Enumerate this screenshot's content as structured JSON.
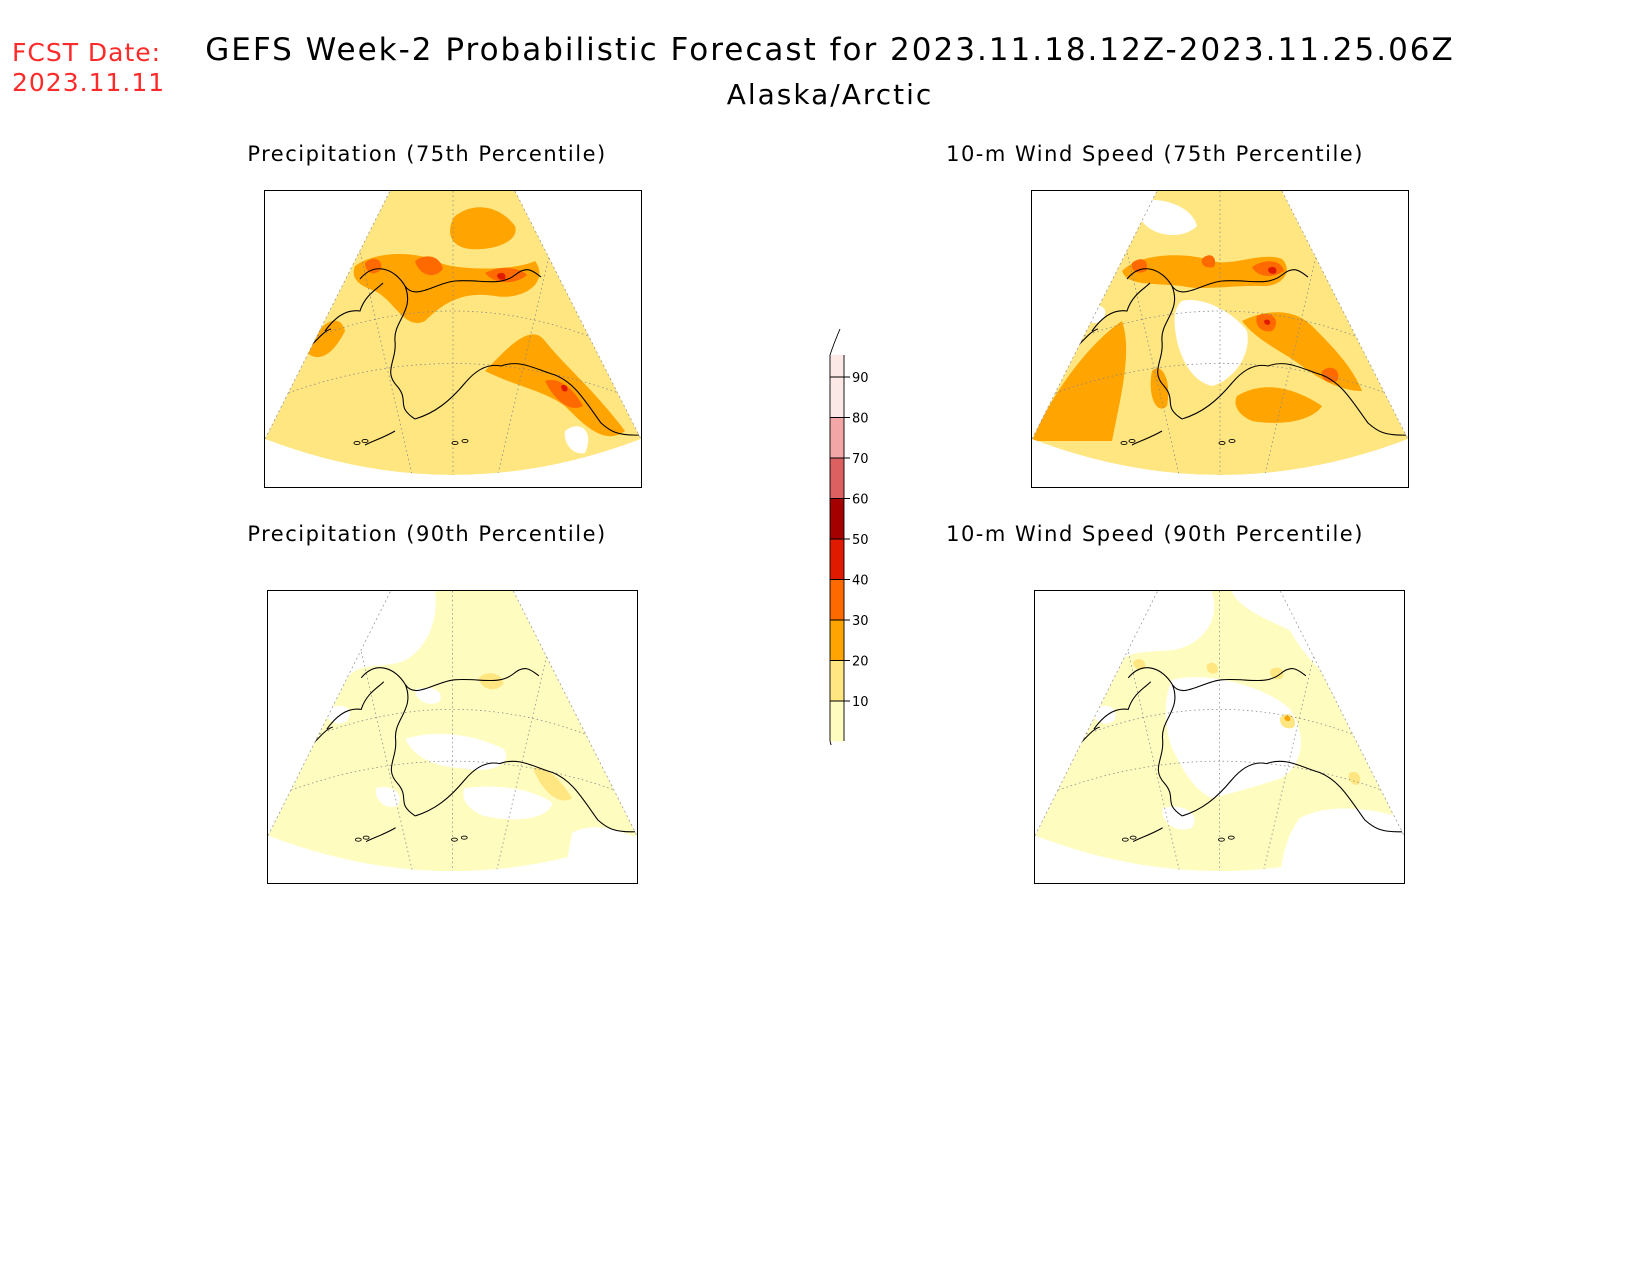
{
  "header": {
    "fcst_label": "FCST Date:",
    "fcst_date": "2023.11.11",
    "title": "GEFS Week-2 Probabilistic Forecast for 2023.11.18.12Z-2023.11.25.06Z",
    "region": "Alaska/Arctic"
  },
  "panels": [
    {
      "id": "precip75",
      "title": "Precipitation (75th Percentile)",
      "base_level": 20
    },
    {
      "id": "wind75",
      "title": "10-m Wind Speed (75th Percentile)",
      "base_level": 20
    },
    {
      "id": "precip90",
      "title": "Precipitation (90th Percentile)",
      "base_level": 10
    },
    {
      "id": "wind90",
      "title": "10-m Wind Speed (90th Percentile)",
      "base_level": 10
    }
  ],
  "legend": {
    "levels": [
      10,
      20,
      30,
      40,
      50,
      60,
      70,
      80,
      90
    ],
    "colors": [
      "#fffcc0",
      "#ffe680",
      "#ffa400",
      "#ff6a00",
      "#e01a00",
      "#a50000",
      "#dd6060",
      "#f2a6a6",
      "#fde8e8"
    ]
  }
}
